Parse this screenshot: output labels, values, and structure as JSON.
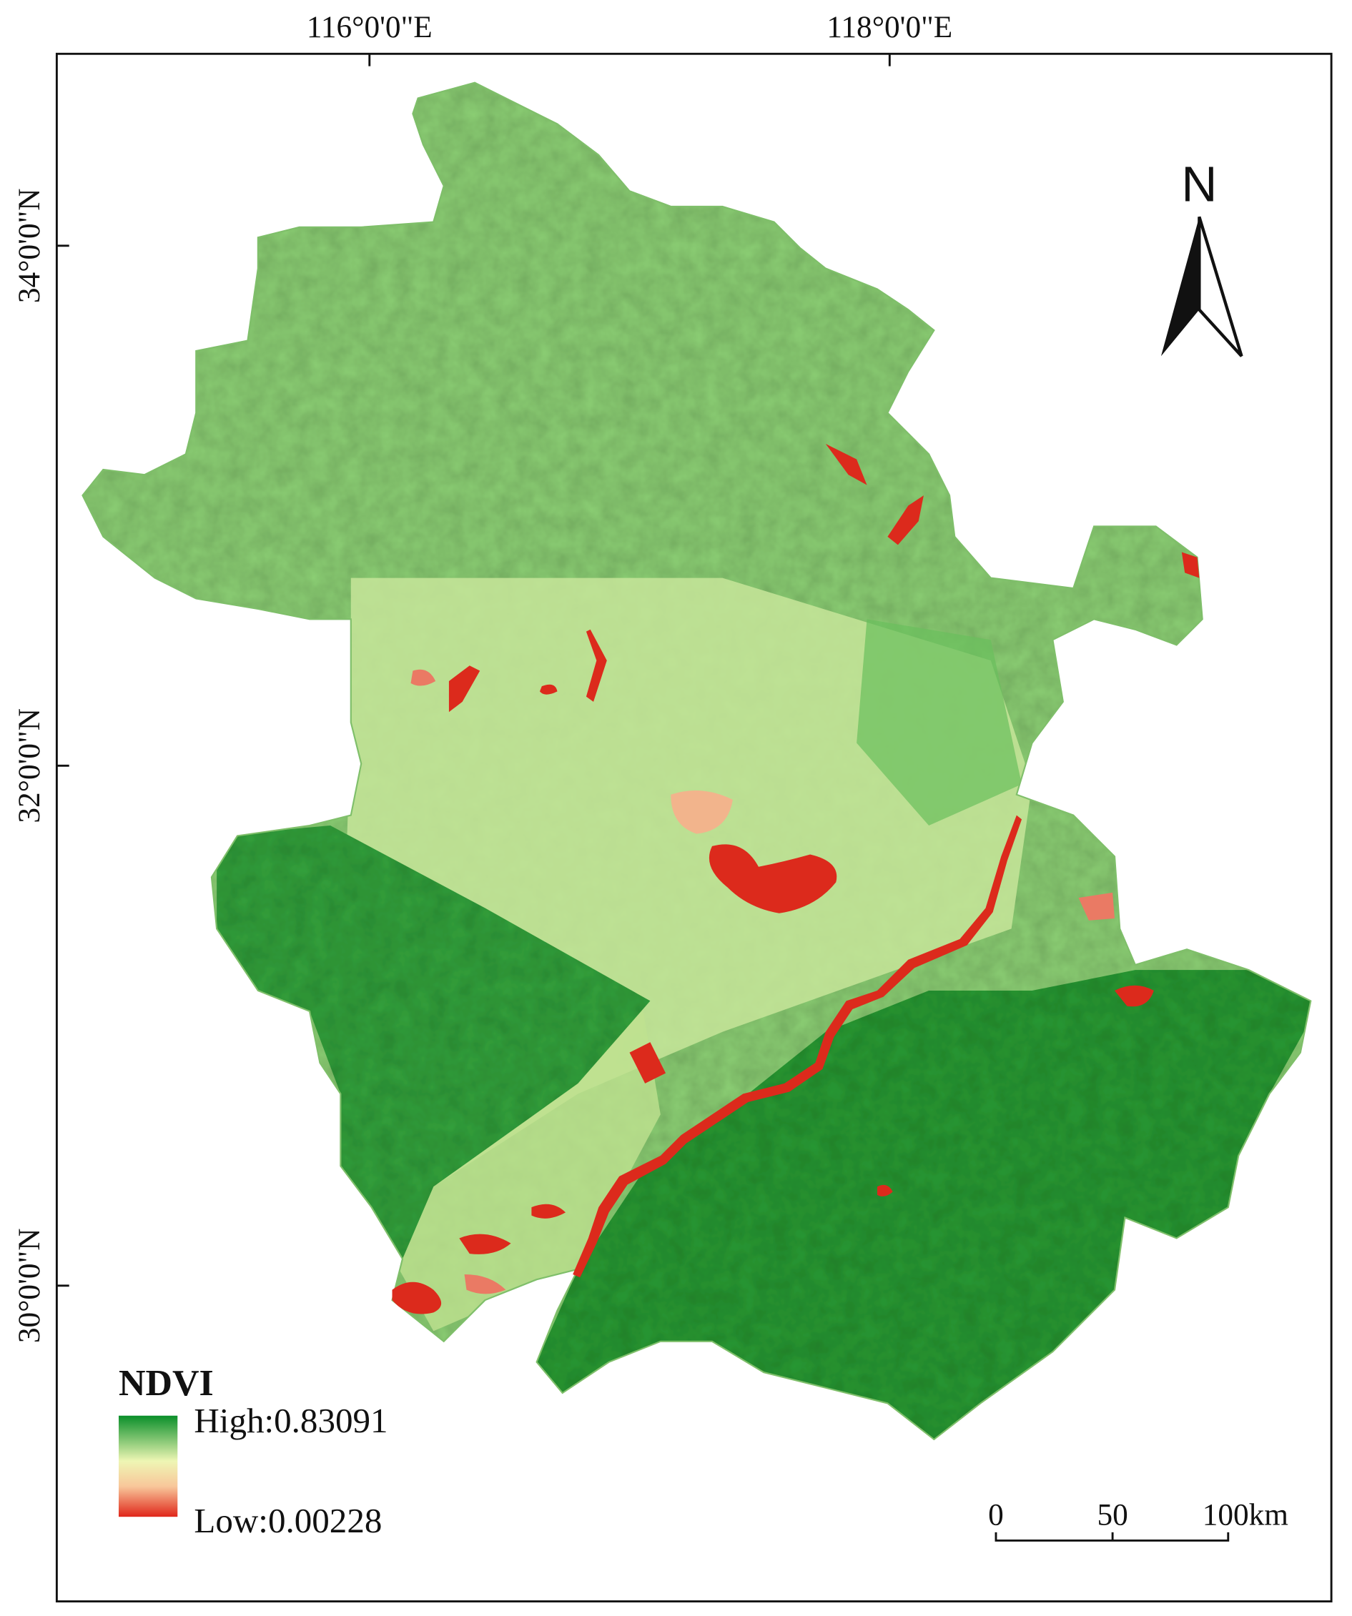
{
  "map": {
    "top_ticks": [
      "116°0'0\"E",
      "118°0'0\"E"
    ],
    "left_ticks": [
      "34°0'0\"N",
      "32°0'0\"N",
      "30°0'0\"N"
    ],
    "north_arrow": "N",
    "legend": {
      "title": "NDVI",
      "high": "High:0.83091",
      "low": "Low:0.00228"
    },
    "scale_bar": [
      "0",
      "50",
      "100km"
    ]
  }
}
